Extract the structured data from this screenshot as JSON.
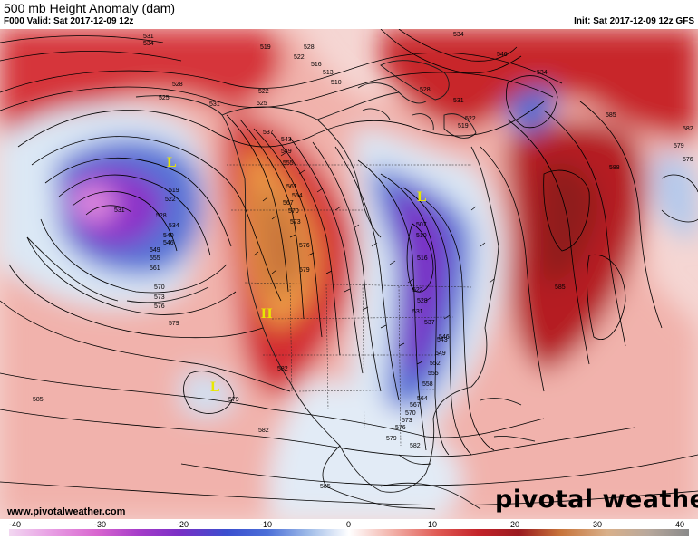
{
  "header": {
    "title": "500 mb Height Anomaly (dam)",
    "valid": "F000 Valid: Sat 2017-12-09 12z",
    "init": "Init: Sat 2017-12-09 12z GFS"
  },
  "footer": {
    "credit": "www.pivotalweather.com",
    "brand": "pivotal weather"
  },
  "colorbar": {
    "ticks": [
      "-40",
      "-30",
      "-20",
      "-10",
      "0",
      "10",
      "20",
      "30",
      "40"
    ]
  },
  "pressure_centers": [
    {
      "type": "L",
      "color": "#e8e800"
    },
    {
      "type": "L",
      "color": "#e8e800"
    },
    {
      "type": "H",
      "color": "#e8e800"
    },
    {
      "type": "L",
      "color": "#e8e800"
    }
  ],
  "contour_labels": [
    "531",
    "534",
    "519",
    "528",
    "516",
    "522",
    "513",
    "510",
    "534",
    "528",
    "531",
    "522",
    "519",
    "546",
    "534",
    "585",
    "582",
    "579",
    "576",
    "528",
    "525",
    "522",
    "525",
    "531",
    "537",
    "543",
    "549",
    "555",
    "561",
    "564",
    "567",
    "570",
    "573",
    "576",
    "579",
    "519",
    "522",
    "528",
    "531",
    "534",
    "540",
    "546",
    "549",
    "555",
    "561",
    "570",
    "573",
    "576",
    "579",
    "582",
    "507",
    "510",
    "516",
    "522",
    "528",
    "531",
    "537",
    "543",
    "546",
    "549",
    "552",
    "555",
    "558",
    "564",
    "567",
    "570",
    "573",
    "576",
    "579",
    "582",
    "585",
    "588",
    "585",
    "579",
    "582",
    "585"
  ]
}
